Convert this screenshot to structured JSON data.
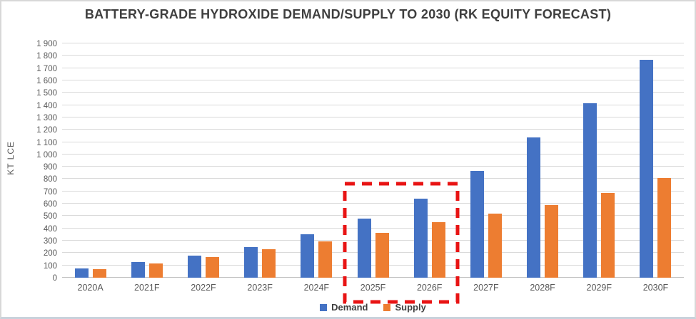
{
  "header": {
    "title": "BATTERY-GRADE HYDROXIDE DEMAND/SUPPLY TO 2030 (RK EQUITY FORECAST)"
  },
  "chart_data": {
    "type": "bar",
    "title": "BATTERY-GRADE HYDROXIDE DEMAND/SUPPLY TO 2030 (RK EQUITY FORECAST)",
    "xlabel": "",
    "ylabel": "KT LCE",
    "ylim": [
      0,
      1900
    ],
    "ytick_step": 100,
    "ytick_labels": [
      "0",
      "100",
      "200",
      "300",
      "400",
      "500",
      "600",
      "700",
      "800",
      "900",
      "1 000",
      "1 100",
      "1 200",
      "1 300",
      "1 400",
      "1 500",
      "1 600",
      "1 700",
      "1 800",
      "1 900"
    ],
    "grid": true,
    "legend_position": "bottom",
    "categories": [
      "2020A",
      "2021F",
      "2022F",
      "2023F",
      "2024F",
      "2025F",
      "2026F",
      "2027F",
      "2028F",
      "2029F",
      "2030F"
    ],
    "series": [
      {
        "name": "Demand",
        "color": "#4472C4",
        "values": [
          75,
          125,
          180,
          250,
          350,
          480,
          640,
          865,
          1140,
          1415,
          1770
        ]
      },
      {
        "name": "Supply",
        "color": "#ED7D31",
        "values": [
          70,
          115,
          170,
          230,
          295,
          365,
          450,
          520,
          590,
          690,
          810
        ]
      }
    ],
    "annotation": {
      "type": "highlight-box",
      "categories": [
        "2025F",
        "2026F"
      ],
      "color": "#E81414"
    }
  },
  "legend": {
    "items": [
      {
        "label": "Demand",
        "color": "#4472C4"
      },
      {
        "label": "Supply",
        "color": "#ED7D31"
      }
    ]
  },
  "colors": {
    "demand": "#4472C4",
    "supply": "#ED7D31",
    "highlight": "#E81414",
    "gridline": "#D9D9D9",
    "axis_line": "#BFBFBF",
    "title_text": "#3F3F3F",
    "axis_text": "#595959"
  }
}
